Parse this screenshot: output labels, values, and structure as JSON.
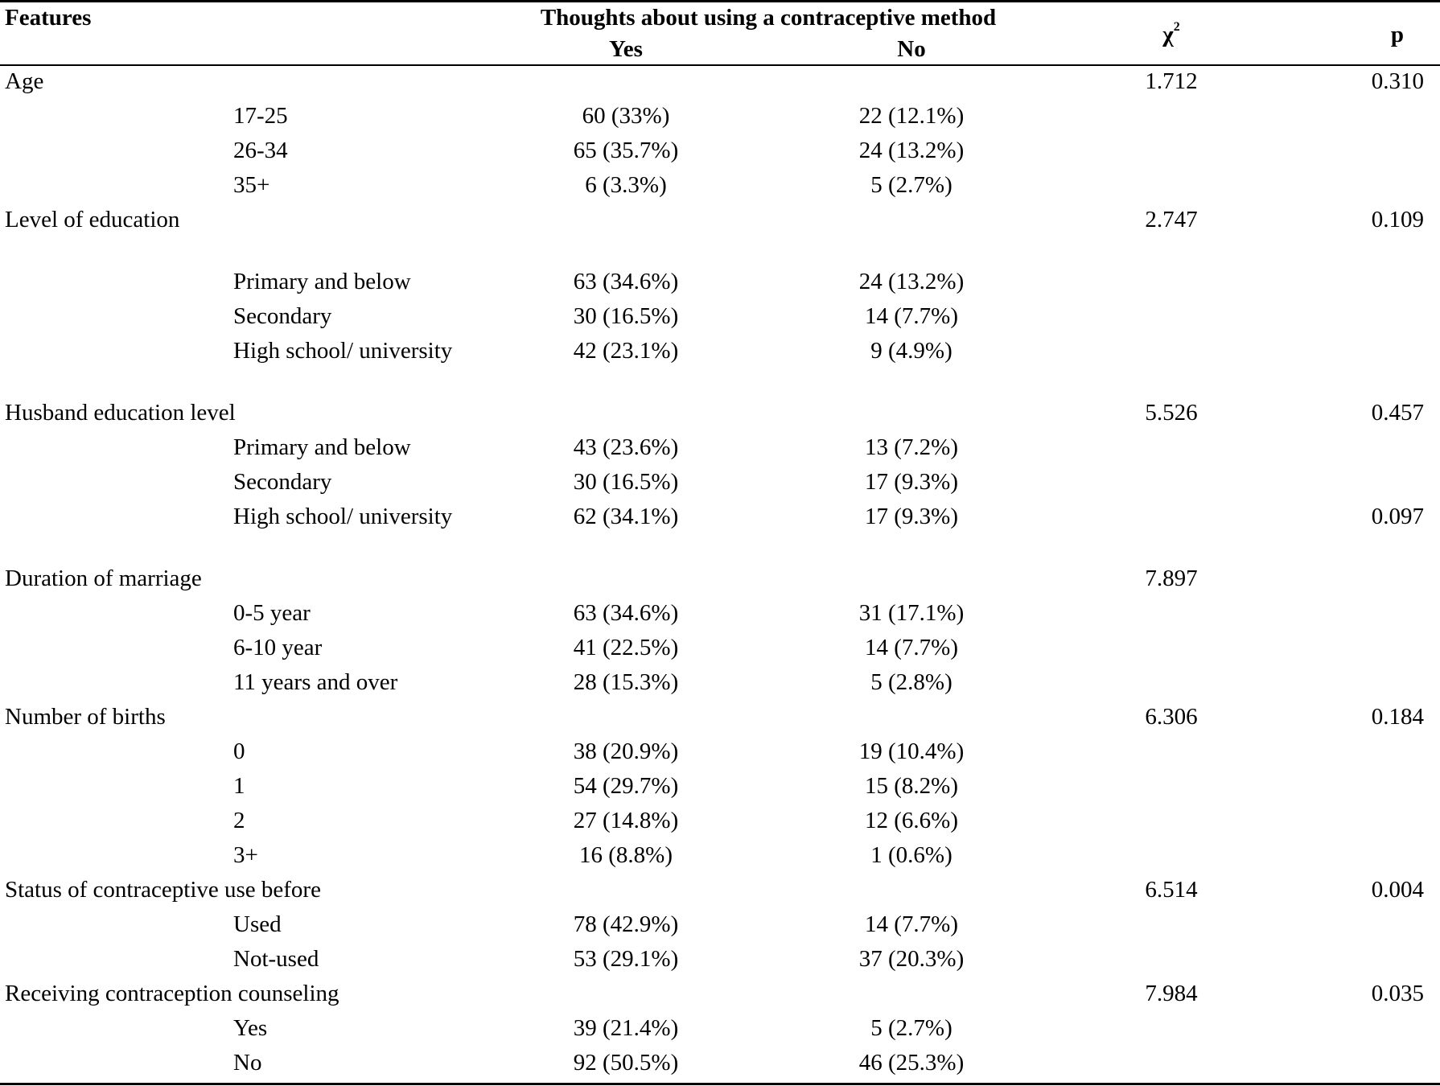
{
  "header": {
    "features": "Features",
    "thoughts": "Thoughts about using a contraceptive method",
    "yes": "Yes",
    "no": "No",
    "chi": "χ",
    "chi_sup": "2",
    "p": "p"
  },
  "rows": [
    {
      "kind": "group",
      "feature": "Age",
      "chi": "1.712",
      "p": "0.310"
    },
    {
      "kind": "sub",
      "label": "17-25",
      "yes": "60 (33%)",
      "no": "22 (12.1%)"
    },
    {
      "kind": "sub",
      "label": "26-34",
      "yes": "65 (35.7%)",
      "no": "24 (13.2%)"
    },
    {
      "kind": "sub",
      "label": "35+",
      "yes": "6 (3.3%)",
      "no": "5 (2.7%)"
    },
    {
      "kind": "group",
      "feature": "Level of education",
      "chi": "2.747",
      "p": "0.109",
      "wrap": true
    },
    {
      "kind": "sub",
      "label": "Primary and below",
      "yes": "63 (34.6%)",
      "no": "24 (13.2%)"
    },
    {
      "kind": "sub",
      "label": "Secondary",
      "yes": "30 (16.5%)",
      "no": "14 (7.7%)"
    },
    {
      "kind": "sub",
      "label": "High school/ university",
      "yes": "42 (23.1%)",
      "no": "9 (4.9%)",
      "wrap": true
    },
    {
      "kind": "group",
      "feature": "Husband education level",
      "chi": "5.526",
      "p": "0.457"
    },
    {
      "kind": "sub",
      "label": "Primary and below",
      "yes": "43 (23.6%)",
      "no": "13 (7.2%)"
    },
    {
      "kind": "sub",
      "label": "Secondary",
      "yes": "30 (16.5%)",
      "no": "17 (9.3%)"
    },
    {
      "kind": "sub",
      "label": "High school/ university",
      "yes": "62 (34.1%)",
      "no": "17 (9.3%)",
      "p": "0.097",
      "wrap": true
    },
    {
      "kind": "group",
      "feature": "Duration of marriage",
      "chi": "7.897"
    },
    {
      "kind": "sub",
      "label": "0-5 year",
      "yes": "63 (34.6%)",
      "no": "31 (17.1%)"
    },
    {
      "kind": "sub",
      "label": "6-10 year",
      "yes": "41 (22.5%)",
      "no": "14 (7.7%)"
    },
    {
      "kind": "sub",
      "label": "11 years and over",
      "yes": "28 (15.3%)",
      "no": "5 (2.8%)"
    },
    {
      "kind": "group",
      "feature": "Number of births",
      "chi": "6.306",
      "p": "0.184"
    },
    {
      "kind": "sub",
      "label": "0",
      "yes": "38 (20.9%)",
      "no": "19 (10.4%)"
    },
    {
      "kind": "sub",
      "label": "1",
      "yes": "54 (29.7%)",
      "no": "15 (8.2%)"
    },
    {
      "kind": "sub",
      "label": "2",
      "yes": "27 (14.8%)",
      "no": "12 (6.6%)"
    },
    {
      "kind": "sub",
      "label": "3+",
      "yes": "16 (8.8%)",
      "no": "1 (0.6%)"
    },
    {
      "kind": "group",
      "feature": "Status of contraceptive use before",
      "chi": "6.514",
      "p": "0.004"
    },
    {
      "kind": "sub",
      "label": "Used",
      "yes": "78 (42.9%)",
      "no": "14 (7.7%)"
    },
    {
      "kind": "sub",
      "label": "Not-used",
      "yes": "53 (29.1%)",
      "no": "37 (20.3%)"
    },
    {
      "kind": "group",
      "feature": "Receiving contraception counseling",
      "chi": "7.984",
      "p": "0.035"
    },
    {
      "kind": "sub",
      "label": "Yes",
      "yes": "39 (21.4%)",
      "no": "5 (2.7%)"
    },
    {
      "kind": "sub",
      "label": "No",
      "yes": "92 (50.5%)",
      "no": "46 (25.3%)"
    }
  ]
}
